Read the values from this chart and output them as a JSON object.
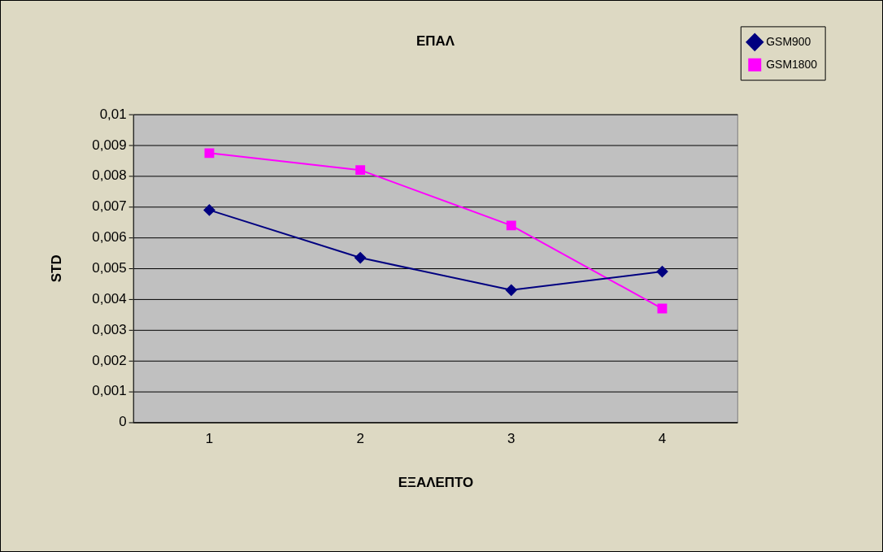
{
  "chart_data": {
    "type": "line",
    "title": "ΕΠΑΛ",
    "xlabel": "ΕΞΑΛΕΠΤΟ",
    "ylabel": "STD",
    "categories": [
      "1",
      "2",
      "3",
      "4"
    ],
    "series": [
      {
        "name": "GSM900",
        "color": "#000080",
        "marker": "diamond",
        "values": [
          0.0069,
          0.00535,
          0.0043,
          0.0049
        ]
      },
      {
        "name": "GSM1800",
        "color": "#ff00ff",
        "marker": "square",
        "values": [
          0.00875,
          0.0082,
          0.0064,
          0.0037
        ]
      }
    ],
    "ylim": [
      0,
      0.01
    ],
    "yticks": [
      0,
      {
        "value": 0.001,
        "label": "0,001"
      },
      {
        "value": 0.002,
        "label": "0,002"
      },
      {
        "value": 0.003,
        "label": "0,003"
      },
      {
        "value": 0.004,
        "label": "0,004"
      },
      {
        "value": 0.005,
        "label": "0,005"
      },
      {
        "value": 0.006,
        "label": "0,006"
      },
      {
        "value": 0.007,
        "label": "0,007"
      },
      {
        "value": 0.008,
        "label": "0,008"
      },
      {
        "value": 0.009,
        "label": "0,009"
      },
      {
        "value": 0.01,
        "label": "0,01"
      }
    ],
    "grid": "y",
    "legend": "top right",
    "line_style": "solid"
  }
}
